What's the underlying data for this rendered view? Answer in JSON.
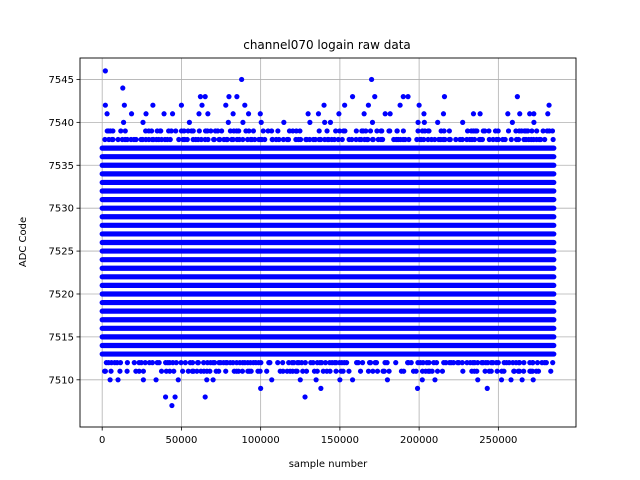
{
  "chart_data": {
    "type": "scatter",
    "title": "channel070 logain raw data",
    "xlabel": "sample number",
    "ylabel": "ADC Code",
    "xlim": [
      -14000,
      299000
    ],
    "ylim": [
      7504.5,
      7547.5
    ],
    "x_ticks": [
      0,
      50000,
      100000,
      150000,
      200000,
      250000
    ],
    "x_tick_labels": [
      "0",
      "50000",
      "100000",
      "150000",
      "200000",
      "250000"
    ],
    "y_ticks": [
      7510,
      7515,
      7520,
      7525,
      7530,
      7535,
      7540,
      7545
    ],
    "y_tick_labels": [
      "7510",
      "7515",
      "7520",
      "7525",
      "7530",
      "7535",
      "7540",
      "7545"
    ],
    "grid": true,
    "color": "#0000ff",
    "x_range_samples": [
      0,
      285000
    ],
    "dense_band": {
      "solid_levels": [
        7513,
        7514,
        7515,
        7516,
        7517,
        7518,
        7519,
        7520,
        7521,
        7522,
        7523,
        7524,
        7525,
        7526,
        7527,
        7528,
        7529,
        7530,
        7531,
        7532,
        7533,
        7534,
        7535,
        7536,
        7537
      ],
      "sparse_levels": [
        7511,
        7512,
        7538,
        7539
      ],
      "rare_levels": [
        7510,
        7540,
        7541
      ]
    },
    "outliers": [
      {
        "x": 2000,
        "y": 7546
      },
      {
        "x": 2000,
        "y": 7542
      },
      {
        "x": 13000,
        "y": 7544
      },
      {
        "x": 14000,
        "y": 7542
      },
      {
        "x": 88000,
        "y": 7545
      },
      {
        "x": 170000,
        "y": 7545
      },
      {
        "x": 62000,
        "y": 7543
      },
      {
        "x": 65000,
        "y": 7543
      },
      {
        "x": 80000,
        "y": 7543
      },
      {
        "x": 85000,
        "y": 7543
      },
      {
        "x": 158000,
        "y": 7543
      },
      {
        "x": 172000,
        "y": 7543
      },
      {
        "x": 190000,
        "y": 7543
      },
      {
        "x": 193000,
        "y": 7543
      },
      {
        "x": 216000,
        "y": 7543
      },
      {
        "x": 262000,
        "y": 7543
      },
      {
        "x": 32000,
        "y": 7542
      },
      {
        "x": 63000,
        "y": 7542
      },
      {
        "x": 78000,
        "y": 7542
      },
      {
        "x": 90000,
        "y": 7542
      },
      {
        "x": 140000,
        "y": 7542
      },
      {
        "x": 153000,
        "y": 7542
      },
      {
        "x": 168000,
        "y": 7542
      },
      {
        "x": 188000,
        "y": 7542
      },
      {
        "x": 200000,
        "y": 7542
      },
      {
        "x": 282000,
        "y": 7542
      },
      {
        "x": 50000,
        "y": 7542
      },
      {
        "x": 40000,
        "y": 7508
      },
      {
        "x": 46000,
        "y": 7508
      },
      {
        "x": 65000,
        "y": 7508
      },
      {
        "x": 128000,
        "y": 7508
      },
      {
        "x": 44000,
        "y": 7507
      },
      {
        "x": 100000,
        "y": 7509
      },
      {
        "x": 138000,
        "y": 7509
      },
      {
        "x": 199000,
        "y": 7509
      },
      {
        "x": 243000,
        "y": 7509
      },
      {
        "x": 5000,
        "y": 7510
      },
      {
        "x": 10000,
        "y": 7510
      },
      {
        "x": 26000,
        "y": 7510
      },
      {
        "x": 34000,
        "y": 7510
      },
      {
        "x": 48000,
        "y": 7510
      },
      {
        "x": 66000,
        "y": 7510
      },
      {
        "x": 70000,
        "y": 7510
      },
      {
        "x": 107000,
        "y": 7510
      },
      {
        "x": 125000,
        "y": 7510
      },
      {
        "x": 135000,
        "y": 7510
      },
      {
        "x": 150000,
        "y": 7510
      },
      {
        "x": 158000,
        "y": 7510
      },
      {
        "x": 180000,
        "y": 7510
      },
      {
        "x": 202000,
        "y": 7510
      },
      {
        "x": 210000,
        "y": 7510
      },
      {
        "x": 237000,
        "y": 7510
      },
      {
        "x": 252000,
        "y": 7510
      },
      {
        "x": 258000,
        "y": 7510
      },
      {
        "x": 265000,
        "y": 7510
      },
      {
        "x": 272000,
        "y": 7510
      }
    ]
  }
}
